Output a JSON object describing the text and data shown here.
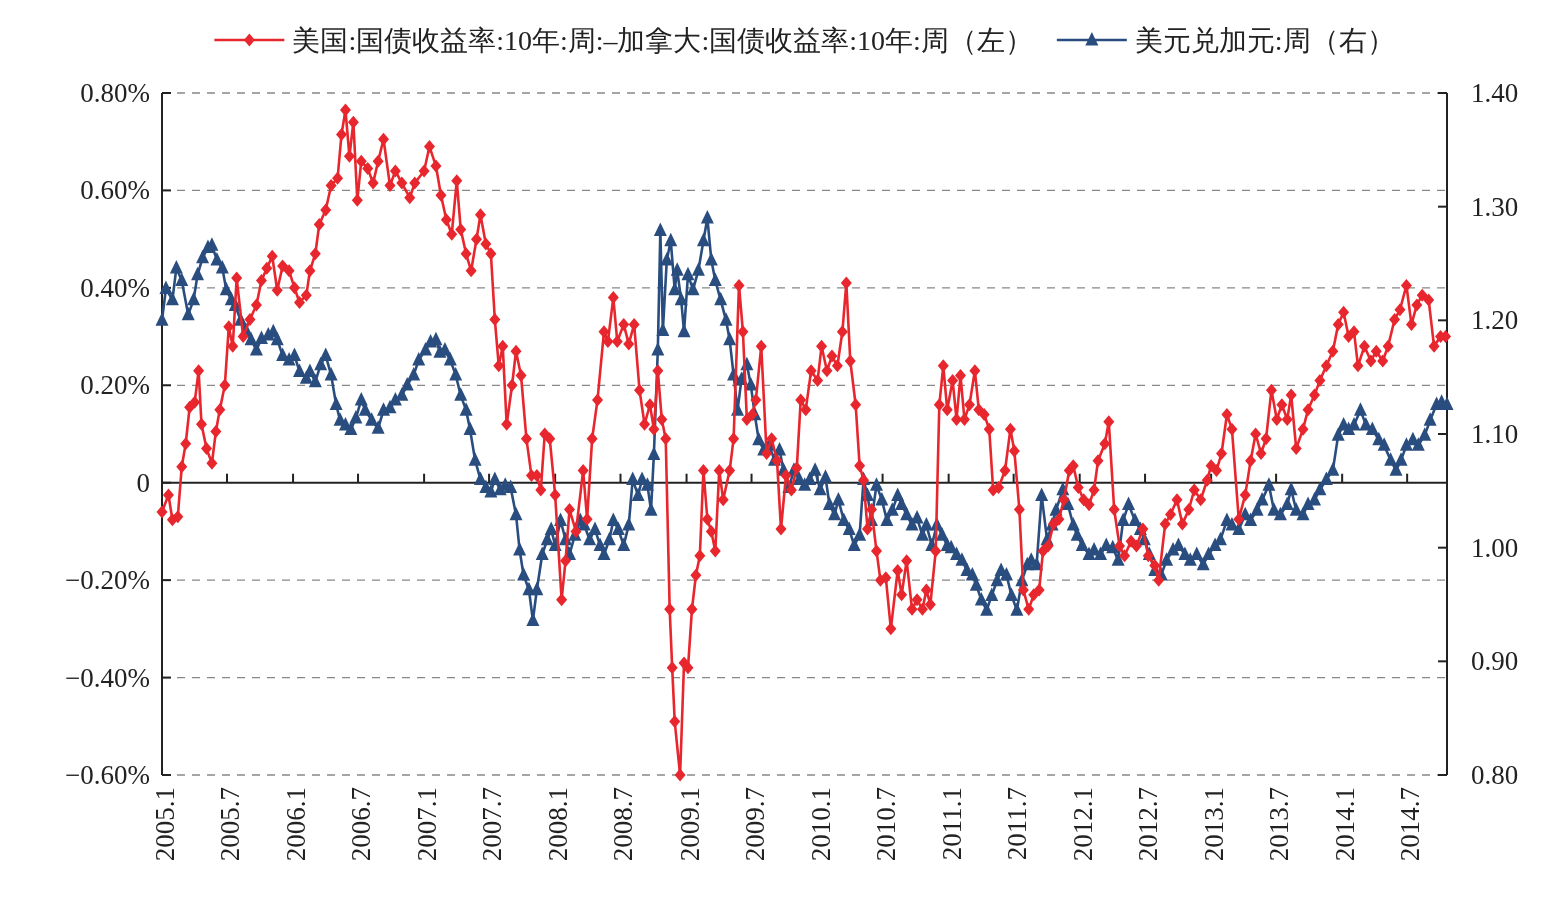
{
  "chart_data": {
    "type": "line",
    "legend": "top",
    "grid": "y",
    "xlim": [
      "2005-01-01",
      "2014-10-20"
    ],
    "xticks": [
      {
        "value": "2005-01",
        "label": "2005.1"
      },
      {
        "value": "2005-07",
        "label": "2005.7"
      },
      {
        "value": "2006-01",
        "label": "2006.1"
      },
      {
        "value": "2006-07",
        "label": "2006.7"
      },
      {
        "value": "2007-01",
        "label": "2007.1"
      },
      {
        "value": "2007-07",
        "label": "2007.7"
      },
      {
        "value": "2008-01",
        "label": "2008.1"
      },
      {
        "value": "2008-07",
        "label": "2008.7"
      },
      {
        "value": "2009-01",
        "label": "2009.1"
      },
      {
        "value": "2009-07",
        "label": "2009.7"
      },
      {
        "value": "2010-01",
        "label": "2010.1"
      },
      {
        "value": "2010-07",
        "label": "2010.7"
      },
      {
        "value": "2011-01",
        "label": "2011.1"
      },
      {
        "value": "2011-07",
        "label": "2011.7"
      },
      {
        "value": "2012-01",
        "label": "2012.1"
      },
      {
        "value": "2012-07",
        "label": "2012.7"
      },
      {
        "value": "2013-01",
        "label": "2013.1"
      },
      {
        "value": "2013-07",
        "label": "2013.7"
      },
      {
        "value": "2014-01",
        "label": "2014.1"
      },
      {
        "value": "2014-07",
        "label": "2014.7"
      }
    ],
    "ylim": [
      -0.6,
      0.8
    ],
    "yticks": [
      {
        "value": 0.8,
        "label": "0.80%"
      },
      {
        "value": 0.6,
        "label": "0.60%"
      },
      {
        "value": 0.4,
        "label": "0.40%"
      },
      {
        "value": 0.2,
        "label": "0.20%"
      },
      0,
      {
        "value": -0.2,
        "label": "−0.20%"
      },
      {
        "value": -0.4,
        "label": "−0.40%"
      },
      {
        "value": -0.6,
        "label": "−0.60%"
      }
    ],
    "y2lim": [
      0.8,
      1.4
    ],
    "y2ticks": [
      {
        "value": 1.4,
        "label": "1.40"
      },
      {
        "value": 1.3,
        "label": "1.30"
      },
      {
        "value": 1.2,
        "label": "1.20"
      },
      {
        "value": 1.1,
        "label": "1.10"
      },
      {
        "value": 1.0,
        "label": "1.00"
      },
      {
        "value": 0.9,
        "label": "0.90"
      },
      {
        "value": 0.8,
        "label": "0.80"
      }
    ],
    "series": [
      {
        "name": "美国:国债收益率:10年:周:–加拿大:国债收益率:10年:周（左）",
        "color": "#e8262d",
        "marker": "diamond",
        "x": [
          "2005-01-01",
          "2005-01-19",
          "2005-01-30",
          "2005-02-14",
          "2005-02-25",
          "2005-03-08",
          "2005-03-19",
          "2005-04-02",
          "2005-04-13",
          "2005-04-21",
          "2005-05-05",
          "2005-05-20",
          "2005-05-31",
          "2005-06-11",
          "2005-06-25",
          "2005-07-06",
          "2005-07-17",
          "2005-07-28",
          "2005-08-15",
          "2005-09-03",
          "2005-09-21",
          "2005-10-05",
          "2005-10-20",
          "2005-11-04",
          "2005-11-18",
          "2005-12-03",
          "2005-12-21",
          "2006-01-05",
          "2006-01-19",
          "2006-02-07",
          "2006-02-17",
          "2006-03-04",
          "2006-03-15",
          "2006-04-02",
          "2006-04-17",
          "2006-05-05",
          "2006-05-16",
          "2006-05-27",
          "2006-06-07",
          "2006-06-18",
          "2006-06-29",
          "2006-07-10",
          "2006-07-28",
          "2006-08-12",
          "2006-08-26",
          "2006-09-10",
          "2006-09-28",
          "2006-10-13",
          "2006-10-31",
          "2006-11-22",
          "2006-12-06",
          "2007-01-01",
          "2007-01-16",
          "2007-02-03",
          "2007-02-17",
          "2007-03-04",
          "2007-03-19",
          "2007-04-02",
          "2007-04-13",
          "2007-04-28",
          "2007-05-12",
          "2007-05-27",
          "2007-06-07",
          "2007-06-22",
          "2007-07-06",
          "2007-07-17",
          "2007-07-28",
          "2007-08-08",
          "2007-08-19",
          "2007-09-03",
          "2007-09-14",
          "2007-09-28",
          "2007-10-13",
          "2007-10-27",
          "2007-11-11",
          "2007-11-22",
          "2007-12-03",
          "2007-12-17",
          "2008-01-01",
          "2008-01-19",
          "2008-01-30",
          "2008-02-10",
          "2008-02-28",
          "2008-03-19",
          "2008-03-30",
          "2008-04-13",
          "2008-04-28",
          "2008-05-16",
          "2008-05-27",
          "2008-06-11",
          "2008-06-22",
          "2008-07-10",
          "2008-07-24",
          "2008-08-08",
          "2008-08-23",
          "2008-09-06",
          "2008-09-21",
          "2008-10-02",
          "2008-10-13",
          "2008-10-24",
          "2008-11-04",
          "2008-11-15",
          "2008-11-22",
          "2008-11-29",
          "2008-12-14",
          "2008-12-25",
          "2009-01-05",
          "2009-01-16",
          "2009-01-27",
          "2009-02-07",
          "2009-02-17",
          "2009-02-28",
          "2009-03-11",
          "2009-03-22",
          "2009-04-02",
          "2009-04-13",
          "2009-05-01",
          "2009-05-12",
          "2009-05-27",
          "2009-06-07",
          "2009-06-18",
          "2009-07-03",
          "2009-07-13",
          "2009-07-28",
          "2009-08-12",
          "2009-08-26",
          "2009-09-10",
          "2009-09-21",
          "2009-10-05",
          "2009-10-20",
          "2009-11-04",
          "2009-11-15",
          "2009-11-29",
          "2009-12-14",
          "2010-01-01",
          "2010-01-12",
          "2010-01-27",
          "2010-02-10",
          "2010-02-25",
          "2010-03-11",
          "2010-03-22",
          "2010-04-02",
          "2010-04-17",
          "2010-04-28",
          "2010-05-09",
          "2010-05-20",
          "2010-05-31",
          "2010-06-14",
          "2010-06-25",
          "2010-07-10",
          "2010-07-24",
          "2010-08-12",
          "2010-08-23",
          "2010-09-06",
          "2010-09-21",
          "2010-10-05",
          "2010-10-20",
          "2010-10-31",
          "2010-11-11",
          "2010-11-26",
          "2010-12-06",
          "2010-12-17",
          "2010-12-28",
          "2011-01-12",
          "2011-01-23",
          "2011-02-03",
          "2011-02-14",
          "2011-02-28",
          "2011-03-15",
          "2011-03-26",
          "2011-04-10",
          "2011-04-24",
          "2011-05-05",
          "2011-05-20",
          "2011-06-07",
          "2011-06-22",
          "2011-07-03",
          "2011-07-17",
          "2011-07-28",
          "2011-08-12",
          "2011-08-26",
          "2011-09-10",
          "2011-09-21",
          "2011-10-05",
          "2011-10-20",
          "2011-11-04",
          "2011-11-18",
          "2011-12-03",
          "2011-12-14",
          "2011-12-28",
          "2012-01-12",
          "2012-01-27",
          "2012-02-10",
          "2012-02-21",
          "2012-03-11",
          "2012-03-22",
          "2012-04-06",
          "2012-04-21",
          "2012-05-05",
          "2012-05-23",
          "2012-06-07",
          "2012-06-25",
          "2012-07-10",
          "2012-07-28",
          "2012-08-08",
          "2012-08-26",
          "2012-09-10",
          "2012-09-28",
          "2012-10-13",
          "2012-10-31",
          "2012-11-15",
          "2012-12-03",
          "2012-12-21",
          "2013-01-01",
          "2013-01-16",
          "2013-01-30",
          "2013-02-14",
          "2013-02-28",
          "2013-03-19",
          "2013-04-06",
          "2013-04-21",
          "2013-05-05",
          "2013-05-20",
          "2013-06-03",
          "2013-06-18",
          "2013-07-03",
          "2013-07-17",
          "2013-08-01",
          "2013-08-12",
          "2013-08-26",
          "2013-09-14",
          "2013-09-28",
          "2013-10-16",
          "2013-10-31",
          "2013-11-18",
          "2013-12-06",
          "2013-12-21",
          "2014-01-05",
          "2014-01-19",
          "2014-02-03",
          "2014-02-14",
          "2014-03-04",
          "2014-03-22",
          "2014-04-06",
          "2014-04-24",
          "2014-05-09",
          "2014-05-27",
          "2014-06-11",
          "2014-06-29",
          "2014-07-13",
          "2014-07-28",
          "2014-08-12",
          "2014-08-30",
          "2014-09-14",
          "2014-10-02",
          "2014-10-16"
        ],
        "values": [
          -0.06,
          -0.025,
          -0.076,
          -0.07,
          0.033,
          0.08,
          0.155,
          0.165,
          0.23,
          0.12,
          0.07,
          0.04,
          0.105,
          0.15,
          0.2,
          0.32,
          0.28,
          0.42,
          0.3,
          0.335,
          0.365,
          0.415,
          0.44,
          0.465,
          0.395,
          0.445,
          0.435,
          0.4,
          0.37,
          0.385,
          0.435,
          0.47,
          0.53,
          0.56,
          0.61,
          0.625,
          0.715,
          0.765,
          0.67,
          0.74,
          0.58,
          0.66,
          0.645,
          0.615,
          0.66,
          0.705,
          0.61,
          0.64,
          0.615,
          0.585,
          0.615,
          0.64,
          0.69,
          0.65,
          0.59,
          0.54,
          0.51,
          0.62,
          0.52,
          0.47,
          0.435,
          0.5,
          0.55,
          0.49,
          0.47,
          0.335,
          0.24,
          0.28,
          0.12,
          0.2,
          0.27,
          0.22,
          0.09,
          0.015,
          0.015,
          -0.015,
          0.1,
          0.09,
          -0.025,
          -0.24,
          -0.16,
          -0.055,
          -0.1,
          0.025,
          -0.075,
          0.09,
          0.17,
          0.31,
          0.29,
          0.38,
          0.29,
          0.325,
          0.285,
          0.325,
          0.19,
          0.12,
          0.16,
          0.11,
          0.23,
          0.13,
          0.09,
          -0.26,
          -0.38,
          -0.49,
          -0.6,
          -0.37,
          -0.38,
          -0.26,
          -0.19,
          -0.15,
          0.025,
          -0.075,
          -0.1,
          -0.14,
          0.025,
          -0.035,
          0.025,
          0.09,
          0.405,
          0.31,
          0.13,
          0.14,
          0.17,
          0.28,
          0.06,
          0.09,
          0.045,
          -0.095,
          0.015,
          -0.015,
          0.03,
          0.17,
          0.15,
          0.23,
          0.21,
          0.28,
          0.23,
          0.26,
          0.24,
          0.31,
          0.41,
          0.25,
          0.16,
          0.035,
          0.005,
          -0.095,
          -0.055,
          -0.14,
          -0.2,
          -0.195,
          -0.3,
          -0.18,
          -0.23,
          -0.16,
          -0.26,
          -0.24,
          -0.26,
          -0.22,
          -0.25,
          -0.14,
          0.16,
          0.24,
          0.15,
          0.21,
          0.13,
          0.22,
          0.13,
          0.16,
          0.23,
          0.15,
          0.14,
          0.11,
          -0.015,
          -0.01,
          0.025,
          0.11,
          0.065,
          -0.055,
          -0.22,
          -0.26,
          -0.23,
          -0.22,
          -0.14,
          -0.13,
          -0.085,
          -0.075,
          -0.035,
          0.025,
          0.035,
          -0.01,
          -0.035,
          -0.045,
          -0.015,
          0.045,
          0.08,
          0.125,
          -0.055,
          -0.13,
          -0.15,
          -0.12,
          -0.13,
          -0.095,
          -0.15,
          -0.17,
          -0.2,
          -0.085,
          -0.065,
          -0.035,
          -0.085,
          -0.055,
          -0.015,
          -0.035,
          0.005,
          0.035,
          0.025,
          0.06,
          0.14,
          0.11,
          -0.075,
          -0.025,
          0.045,
          0.1,
          0.06,
          0.09,
          0.19,
          0.13,
          0.16,
          0.13,
          0.18,
          0.07,
          0.11,
          0.15,
          0.18,
          0.21,
          0.24,
          0.27,
          0.325,
          0.35,
          0.3,
          0.31,
          0.24,
          0.28,
          0.25,
          0.27,
          0.25,
          0.28,
          0.335,
          0.355,
          0.405,
          0.325,
          0.365,
          0.385,
          0.375,
          0.28,
          0.3,
          0.3
        ]
      },
      {
        "name": "美元兑加元:周（右）",
        "color": "#2a4d7f",
        "marker": "triangle",
        "axis": "y2",
        "x": [
          "2005-01-01",
          "2005-01-12",
          "2005-01-30",
          "2005-02-10",
          "2005-02-25",
          "2005-03-15",
          "2005-03-30",
          "2005-04-10",
          "2005-04-24",
          "2005-05-09",
          "2005-05-20",
          "2005-06-03",
          "2005-06-18",
          "2005-06-29",
          "2005-07-13",
          "2005-07-24",
          "2005-08-08",
          "2005-08-23",
          "2005-09-06",
          "2005-09-21",
          "2005-10-05",
          "2005-10-24",
          "2005-11-07",
          "2005-11-18",
          "2005-12-03",
          "2005-12-21",
          "2006-01-05",
          "2006-01-19",
          "2006-02-07",
          "2006-02-17",
          "2006-03-04",
          "2006-03-19",
          "2006-04-02",
          "2006-04-17",
          "2006-05-01",
          "2006-05-12",
          "2006-05-27",
          "2006-06-11",
          "2006-06-25",
          "2006-07-10",
          "2006-07-21",
          "2006-08-08",
          "2006-08-26",
          "2006-09-10",
          "2006-09-28",
          "2006-10-13",
          "2006-10-31",
          "2006-11-15",
          "2006-12-03",
          "2006-12-17",
          "2007-01-05",
          "2007-01-19",
          "2007-02-03",
          "2007-02-14",
          "2007-02-28",
          "2007-03-15",
          "2007-03-30",
          "2007-04-13",
          "2007-04-28",
          "2007-05-09",
          "2007-05-23",
          "2007-06-07",
          "2007-06-22",
          "2007-07-06",
          "2007-07-17",
          "2007-08-01",
          "2007-08-15",
          "2007-08-30",
          "2007-09-14",
          "2007-09-24",
          "2007-10-05",
          "2007-10-20",
          "2007-10-31",
          "2007-11-11",
          "2007-11-26",
          "2007-12-10",
          "2007-12-21",
          "2008-01-01",
          "2008-01-16",
          "2008-01-30",
          "2008-02-10",
          "2008-02-25",
          "2008-03-11",
          "2008-03-22",
          "2008-04-06",
          "2008-04-21",
          "2008-05-05",
          "2008-05-16",
          "2008-05-31",
          "2008-06-11",
          "2008-06-25",
          "2008-07-10",
          "2008-07-24",
          "2008-08-04",
          "2008-08-19",
          "2008-08-30",
          "2008-09-14",
          "2008-09-24",
          "2008-10-02",
          "2008-10-13",
          "2008-10-20",
          "2008-10-27",
          "2008-11-07",
          "2008-11-18",
          "2008-11-29",
          "2008-12-06",
          "2008-12-17",
          "2008-12-25",
          "2009-01-05",
          "2009-01-19",
          "2009-02-03",
          "2009-02-17",
          "2009-02-28",
          "2009-03-11",
          "2009-03-22",
          "2009-04-06",
          "2009-04-21",
          "2009-05-01",
          "2009-05-12",
          "2009-05-23",
          "2009-06-03",
          "2009-06-18",
          "2009-06-29",
          "2009-07-10",
          "2009-07-21",
          "2009-08-04",
          "2009-08-19",
          "2009-09-03",
          "2009-09-17",
          "2009-09-28",
          "2009-10-13",
          "2009-10-27",
          "2009-11-11",
          "2009-11-26",
          "2009-12-10",
          "2009-12-25",
          "2010-01-08",
          "2010-01-23",
          "2010-02-03",
          "2010-02-17",
          "2010-02-28",
          "2010-03-15",
          "2010-03-30",
          "2010-04-13",
          "2010-04-28",
          "2010-05-09",
          "2010-05-20",
          "2010-05-31",
          "2010-06-14",
          "2010-06-29",
          "2010-07-13",
          "2010-07-28",
          "2010-08-12",
          "2010-08-23",
          "2010-09-06",
          "2010-09-21",
          "2010-10-05",
          "2010-10-20",
          "2010-10-31",
          "2010-11-15",
          "2010-11-29",
          "2010-12-14",
          "2010-12-28",
          "2011-01-08",
          "2011-01-23",
          "2011-02-07",
          "2011-02-21",
          "2011-03-08",
          "2011-03-19",
          "2011-04-02",
          "2011-04-17",
          "2011-05-01",
          "2011-05-16",
          "2011-05-27",
          "2011-06-11",
          "2011-06-25",
          "2011-07-10",
          "2011-07-24",
          "2011-08-08",
          "2011-08-19",
          "2011-09-03",
          "2011-09-17",
          "2011-10-02",
          "2011-10-16",
          "2011-10-27",
          "2011-11-15",
          "2011-11-29",
          "2011-12-14",
          "2011-12-25",
          "2012-01-08",
          "2012-01-27",
          "2012-02-10",
          "2012-02-28",
          "2012-03-15",
          "2012-04-02",
          "2012-04-17",
          "2012-05-01",
          "2012-05-16",
          "2012-06-03",
          "2012-06-18",
          "2012-06-29",
          "2012-07-13",
          "2012-07-28",
          "2012-08-15",
          "2012-08-30",
          "2012-09-17",
          "2012-10-02",
          "2012-10-20",
          "2012-11-04",
          "2012-11-22",
          "2012-12-10",
          "2012-12-25",
          "2013-01-12",
          "2013-01-27",
          "2013-02-14",
          "2013-02-28",
          "2013-03-19",
          "2013-04-06",
          "2013-04-21",
          "2013-05-09",
          "2013-05-23",
          "2013-06-11",
          "2013-06-25",
          "2013-07-13",
          "2013-08-01",
          "2013-08-12",
          "2013-08-26",
          "2013-09-14",
          "2013-09-28",
          "2013-10-16",
          "2013-10-31",
          "2013-11-18",
          "2013-12-06",
          "2013-12-21",
          "2014-01-05",
          "2014-01-19",
          "2014-02-03",
          "2014-02-21",
          "2014-03-08",
          "2014-03-26",
          "2014-04-13",
          "2014-04-28",
          "2014-05-16",
          "2014-05-31",
          "2014-06-14",
          "2014-06-29",
          "2014-07-17",
          "2014-08-01",
          "2014-08-19",
          "2014-09-03",
          "2014-09-21",
          "2014-10-05",
          "2014-10-20"
        ],
        "values": [
          1.2,
          1.228,
          1.218,
          1.246,
          1.235,
          1.205,
          1.218,
          1.24,
          1.255,
          1.264,
          1.266,
          1.253,
          1.246,
          1.227,
          1.218,
          1.213,
          1.2,
          1.191,
          1.183,
          1.174,
          1.184,
          1.187,
          1.19,
          1.183,
          1.169,
          1.165,
          1.169,
          1.155,
          1.149,
          1.155,
          1.146,
          1.161,
          1.169,
          1.152,
          1.126,
          1.112,
          1.108,
          1.104,
          1.114,
          1.13,
          1.121,
          1.112,
          1.105,
          1.121,
          1.123,
          1.13,
          1.134,
          1.143,
          1.152,
          1.165,
          1.174,
          1.181,
          1.183,
          1.172,
          1.174,
          1.165,
          1.152,
          1.134,
          1.121,
          1.104,
          1.077,
          1.06,
          1.053,
          1.049,
          1.06,
          1.051,
          1.055,
          1.053,
          1.029,
          0.998,
          0.976,
          0.963,
          0.936,
          0.963,
          0.994,
          1.007,
          1.016,
          1.002,
          1.024,
          1.007,
          0.994,
          1.011,
          1.024,
          1.02,
          1.007,
          1.016,
          1.002,
          0.994,
          1.007,
          1.024,
          1.016,
          1.002,
          1.02,
          1.06,
          1.046,
          1.06,
          1.055,
          1.033,
          1.082,
          1.174,
          1.279,
          1.191,
          1.253,
          1.27,
          1.227,
          1.244,
          1.218,
          1.19,
          1.24,
          1.227,
          1.244,
          1.27,
          1.29,
          1.253,
          1.235,
          1.218,
          1.2,
          1.183,
          1.152,
          1.121,
          1.148,
          1.161,
          1.143,
          1.117,
          1.095,
          1.086,
          1.09,
          1.077,
          1.086,
          1.068,
          1.053,
          1.068,
          1.06,
          1.055,
          1.06,
          1.068,
          1.051,
          1.062,
          1.038,
          1.029,
          1.042,
          1.024,
          1.016,
          1.002,
          1.011,
          1.06,
          1.046,
          1.024,
          1.055,
          1.042,
          1.024,
          1.033,
          1.046,
          1.038,
          1.029,
          1.02,
          1.026,
          1.011,
          1.02,
          1.002,
          1.02,
          1.011,
          1.002,
          1.0,
          0.994,
          0.989,
          0.98,
          0.976,
          0.967,
          0.954,
          0.945,
          0.958,
          0.971,
          0.98,
          0.976,
          0.958,
          0.945,
          0.971,
          0.985,
          0.989,
          0.985,
          1.046,
          1.007,
          1.02,
          1.033,
          1.051,
          1.038,
          1.02,
          1.011,
          1.002,
          0.994,
          0.998,
          0.994,
          1.002,
          1.0,
          0.989,
          1.024,
          1.038,
          1.024,
          1.016,
          1.007,
          0.994,
          0.98,
          0.976,
          0.989,
          0.998,
          1.002,
          0.994,
          0.989,
          0.994,
          0.985,
          0.994,
          1.002,
          1.007,
          1.024,
          1.02,
          1.016,
          1.029,
          1.024,
          1.033,
          1.042,
          1.055,
          1.033,
          1.029,
          1.038,
          1.051,
          1.033,
          1.029,
          1.038,
          1.042,
          1.051,
          1.06,
          1.068,
          1.099,
          1.108,
          1.104,
          1.108,
          1.121,
          1.108,
          1.104,
          1.095,
          1.09,
          1.077,
          1.068,
          1.077,
          1.09,
          1.095,
          1.09,
          1.099,
          1.112,
          1.126,
          1.128,
          1.126
        ]
      }
    ]
  }
}
